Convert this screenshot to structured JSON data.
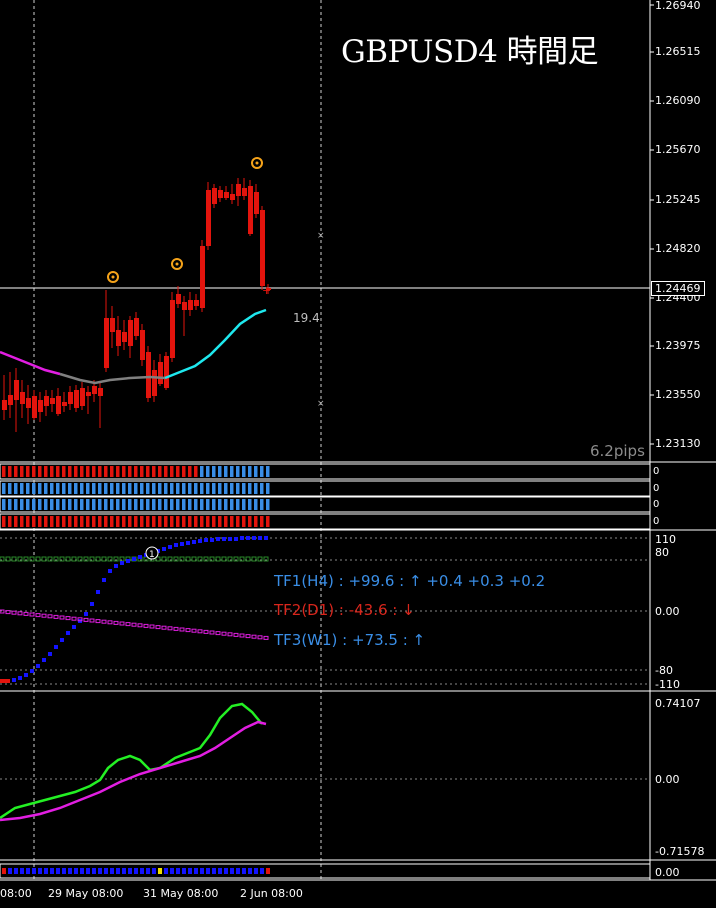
{
  "title": "GBPUSD4 時間足",
  "pips_label": "6.2pips",
  "distance_label": "19.4",
  "current_price": "1.24469",
  "price_axis": [
    "1.26940",
    "1.26515",
    "1.26090",
    "1.25670",
    "1.25245",
    "1.24820",
    "1.24400",
    "1.23975",
    "1.23550",
    "1.23130"
  ],
  "osc_axis": {
    "top": "110",
    "upper": "80",
    "mid": "0.00",
    "lower": "-80",
    "bottom": "-110"
  },
  "tf_lines": {
    "tf1": "TF1(H4) : +99.6 : ↑ +0.4 +0.3 +0.2",
    "tf2": "TF2(D1) : -43.6 : ↓",
    "tf3": "TF3(W1) : +73.5 : ↑"
  },
  "lower_axis": {
    "top": "0.74107",
    "mid": "0.00",
    "bottom": "-0.71578"
  },
  "strip_labels": [
    "0",
    "0",
    "0",
    "0"
  ],
  "bottom_strip_label": "0.00",
  "time_axis": [
    "08:00",
    "29 May 08:00",
    "31 May 08:00",
    "2 Jun 08:00"
  ],
  "colors": {
    "bull": "#3a8ee6",
    "bear": "#e3140d",
    "ma_pink": "#e21ee2",
    "ma_cyan": "#1ee8ee",
    "ma_gray": "#808080",
    "osc_blue": "#1414ff",
    "green": "#24f024",
    "orange": "#f5a31a"
  }
}
